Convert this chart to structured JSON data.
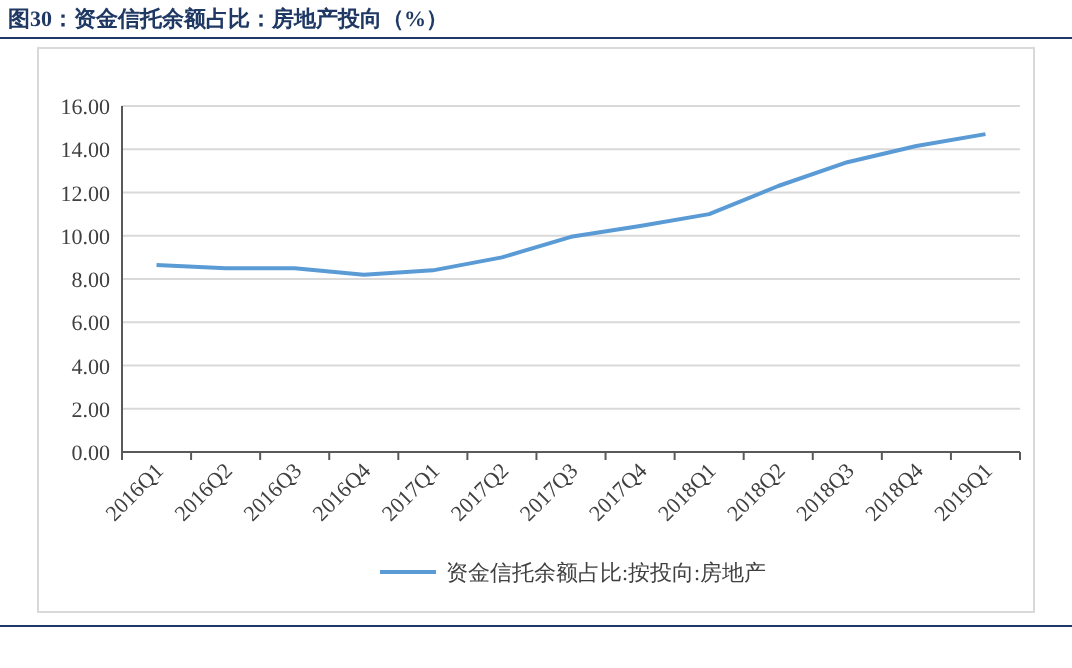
{
  "chart_data": {
    "type": "line",
    "title": "图30：资金信托余额占比：房地产投向（%）",
    "categories": [
      "2016Q1",
      "2016Q2",
      "2016Q3",
      "2016Q4",
      "2017Q1",
      "2017Q2",
      "2017Q3",
      "2017Q4",
      "2018Q1",
      "2018Q2",
      "2018Q3",
      "2018Q4",
      "2019Q1"
    ],
    "series": [
      {
        "name": "资金信托余额占比:按投向:房地产",
        "color": "#5b9bd5",
        "values": [
          8.65,
          8.5,
          8.5,
          8.2,
          8.4,
          9.0,
          9.95,
          10.45,
          11.0,
          12.3,
          13.4,
          14.15,
          14.7
        ]
      }
    ],
    "ylim": [
      0,
      16
    ],
    "yticks": [
      {
        "value": 0,
        "label": "0.00"
      },
      {
        "value": 2,
        "label": "2.00"
      },
      {
        "value": 4,
        "label": "4.00"
      },
      {
        "value": 6,
        "label": "6.00"
      },
      {
        "value": 8,
        "label": "8.00"
      },
      {
        "value": 10,
        "label": "10.00"
      },
      {
        "value": 12,
        "label": "12.00"
      },
      {
        "value": 14,
        "label": "14.00"
      },
      {
        "value": 16,
        "label": "16.00"
      }
    ],
    "grid": "y",
    "legend": "bottom",
    "marker": "none",
    "line_style": "solid"
  }
}
